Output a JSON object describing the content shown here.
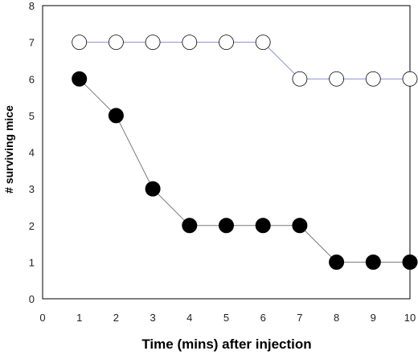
{
  "chart_data": {
    "type": "line",
    "title": "",
    "xlabel": "Time (mins) after injection",
    "ylabel": "# surviving mice",
    "xlim": [
      0,
      10
    ],
    "ylim": [
      0,
      8
    ],
    "xticks": [
      "0",
      "1",
      "2",
      "3",
      "4",
      "5",
      "6",
      "7",
      "8",
      "9",
      "10"
    ],
    "yticks": [
      "0",
      "1",
      "2",
      "3",
      "4",
      "5",
      "6",
      "7",
      "8"
    ],
    "grid": false,
    "legend": "none",
    "x": [
      1,
      2,
      3,
      4,
      5,
      6,
      7,
      8,
      9,
      10
    ],
    "series": [
      {
        "marker": "open-circle",
        "line_color": "#8a8fd0",
        "fill": "#ffffff",
        "values": [
          7,
          7,
          7,
          7,
          7,
          7,
          6,
          6,
          6,
          6
        ]
      },
      {
        "marker": "filled-circle",
        "line_color": "#7a7a7a",
        "fill": "#000000",
        "values": [
          6,
          5,
          3,
          2,
          2,
          2,
          2,
          1,
          1,
          1
        ]
      }
    ]
  }
}
